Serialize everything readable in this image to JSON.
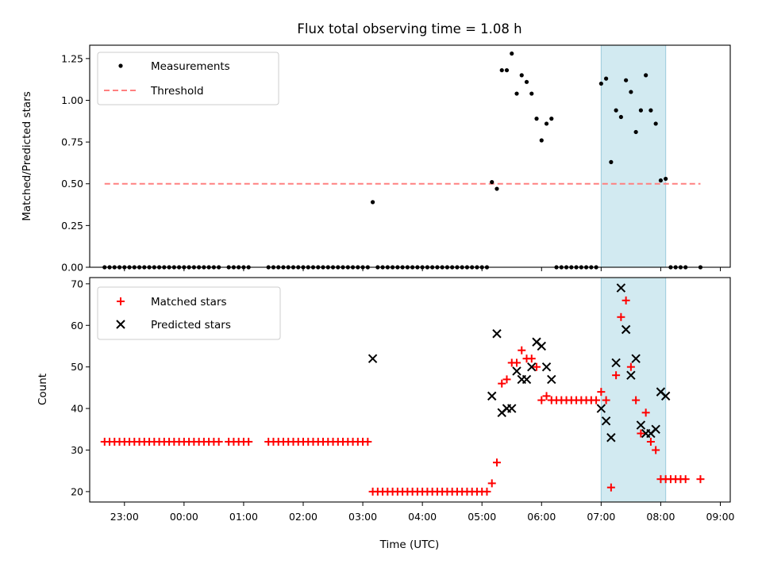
{
  "chart_data": [
    {
      "type": "scatter",
      "title": "Flux total observing time = 1.08 h",
      "xlabel": "",
      "ylabel": "Matched/Predicted stars",
      "ylim": [
        0,
        1.33
      ],
      "yticks": [
        "0.00",
        "0.25",
        "0.50",
        "0.75",
        "1.00",
        "1.25"
      ],
      "xlim": [
        "22:25",
        "09:10"
      ],
      "x_tick_labels_shown": false,
      "legend_position": "upper left",
      "legend": [
        "Measurements",
        "Threshold"
      ],
      "threshold": {
        "value": 0.5,
        "x_range": [
          "22:40",
          "08:40"
        ],
        "color": "#ff8080"
      },
      "shaded_interval": {
        "x_range": [
          "07:00",
          "08:05"
        ],
        "color": "#add8e6"
      },
      "series": [
        {
          "name": "Measurements",
          "color": "#000000",
          "points": [
            [
              "22:40",
              0
            ],
            [
              "22:45",
              0
            ],
            [
              "22:50",
              0
            ],
            [
              "22:55",
              0
            ],
            [
              "23:00",
              0
            ],
            [
              "23:05",
              0
            ],
            [
              "23:10",
              0
            ],
            [
              "23:15",
              0
            ],
            [
              "23:20",
              0
            ],
            [
              "23:25",
              0
            ],
            [
              "23:30",
              0
            ],
            [
              "23:35",
              0
            ],
            [
              "23:40",
              0
            ],
            [
              "23:45",
              0
            ],
            [
              "23:50",
              0
            ],
            [
              "23:55",
              0
            ],
            [
              "00:00",
              0
            ],
            [
              "00:05",
              0
            ],
            [
              "00:10",
              0
            ],
            [
              "00:15",
              0
            ],
            [
              "00:20",
              0
            ],
            [
              "00:25",
              0
            ],
            [
              "00:30",
              0
            ],
            [
              "00:35",
              0
            ],
            [
              "00:45",
              0
            ],
            [
              "00:50",
              0
            ],
            [
              "00:55",
              0
            ],
            [
              "01:00",
              0
            ],
            [
              "01:05",
              0
            ],
            [
              "01:25",
              0
            ],
            [
              "01:30",
              0
            ],
            [
              "01:35",
              0
            ],
            [
              "01:40",
              0
            ],
            [
              "01:45",
              0
            ],
            [
              "01:50",
              0
            ],
            [
              "01:55",
              0
            ],
            [
              "02:00",
              0
            ],
            [
              "02:05",
              0
            ],
            [
              "02:10",
              0
            ],
            [
              "02:15",
              0
            ],
            [
              "02:20",
              0
            ],
            [
              "02:25",
              0
            ],
            [
              "02:30",
              0
            ],
            [
              "02:35",
              0
            ],
            [
              "02:40",
              0
            ],
            [
              "02:45",
              0
            ],
            [
              "02:50",
              0
            ],
            [
              "02:55",
              0
            ],
            [
              "03:00",
              0
            ],
            [
              "03:05",
              0
            ],
            [
              "03:10",
              0.39
            ],
            [
              "03:15",
              0
            ],
            [
              "03:20",
              0
            ],
            [
              "03:25",
              0
            ],
            [
              "03:30",
              0
            ],
            [
              "03:35",
              0
            ],
            [
              "03:40",
              0
            ],
            [
              "03:45",
              0
            ],
            [
              "03:50",
              0
            ],
            [
              "03:55",
              0
            ],
            [
              "04:00",
              0
            ],
            [
              "04:05",
              0
            ],
            [
              "04:10",
              0
            ],
            [
              "04:15",
              0
            ],
            [
              "04:20",
              0
            ],
            [
              "04:25",
              0
            ],
            [
              "04:30",
              0
            ],
            [
              "04:35",
              0
            ],
            [
              "04:40",
              0
            ],
            [
              "04:45",
              0
            ],
            [
              "04:50",
              0
            ],
            [
              "04:55",
              0
            ],
            [
              "05:00",
              0
            ],
            [
              "05:05",
              0
            ],
            [
              "05:10",
              0.51
            ],
            [
              "05:15",
              0.47
            ],
            [
              "05:20",
              1.18
            ],
            [
              "05:25",
              1.18
            ],
            [
              "05:30",
              1.28
            ],
            [
              "05:35",
              1.04
            ],
            [
              "05:40",
              1.15
            ],
            [
              "05:45",
              1.11
            ],
            [
              "05:50",
              1.04
            ],
            [
              "05:55",
              0.89
            ],
            [
              "06:00",
              0.76
            ],
            [
              "06:05",
              0.86
            ],
            [
              "06:10",
              0.89
            ],
            [
              "06:15",
              0
            ],
            [
              "06:20",
              0
            ],
            [
              "06:25",
              0
            ],
            [
              "06:30",
              0
            ],
            [
              "06:35",
              0
            ],
            [
              "06:40",
              0
            ],
            [
              "06:45",
              0
            ],
            [
              "06:50",
              0
            ],
            [
              "06:55",
              0
            ],
            [
              "07:00",
              1.1
            ],
            [
              "07:05",
              1.13
            ],
            [
              "07:10",
              0.63
            ],
            [
              "07:15",
              0.94
            ],
            [
              "07:20",
              0.9
            ],
            [
              "07:25",
              1.12
            ],
            [
              "07:30",
              1.05
            ],
            [
              "07:35",
              0.81
            ],
            [
              "07:40",
              0.94
            ],
            [
              "07:45",
              1.15
            ],
            [
              "07:50",
              0.94
            ],
            [
              "07:55",
              0.86
            ],
            [
              "08:00",
              0.52
            ],
            [
              "08:05",
              0.53
            ],
            [
              "08:10",
              0
            ],
            [
              "08:15",
              0
            ],
            [
              "08:20",
              0
            ],
            [
              "08:25",
              0
            ],
            [
              "08:40",
              0
            ]
          ]
        }
      ]
    },
    {
      "type": "scatter",
      "title": "",
      "xlabel": "Time (UTC)",
      "ylabel": "Count",
      "ylim": [
        17.5,
        71.5
      ],
      "yticks": [
        "20",
        "30",
        "40",
        "50",
        "60",
        "70"
      ],
      "xlim": [
        "22:25",
        "09:10"
      ],
      "x_tick_labels": [
        "23:00",
        "00:00",
        "01:00",
        "02:00",
        "03:00",
        "04:00",
        "05:00",
        "06:00",
        "07:00",
        "08:00",
        "09:00"
      ],
      "legend_position": "upper left",
      "legend": [
        "Matched stars",
        "Predicted stars"
      ],
      "shaded_interval": {
        "x_range": [
          "07:00",
          "08:05"
        ],
        "color": "#add8e6"
      },
      "series": [
        {
          "name": "Matched stars",
          "marker": "+",
          "color": "#ff0000",
          "points": [
            [
              "22:40",
              32
            ],
            [
              "22:45",
              32
            ],
            [
              "22:50",
              32
            ],
            [
              "22:55",
              32
            ],
            [
              "23:00",
              32
            ],
            [
              "23:05",
              32
            ],
            [
              "23:10",
              32
            ],
            [
              "23:15",
              32
            ],
            [
              "23:20",
              32
            ],
            [
              "23:25",
              32
            ],
            [
              "23:30",
              32
            ],
            [
              "23:35",
              32
            ],
            [
              "23:40",
              32
            ],
            [
              "23:45",
              32
            ],
            [
              "23:50",
              32
            ],
            [
              "23:55",
              32
            ],
            [
              "00:00",
              32
            ],
            [
              "00:05",
              32
            ],
            [
              "00:10",
              32
            ],
            [
              "00:15",
              32
            ],
            [
              "00:20",
              32
            ],
            [
              "00:25",
              32
            ],
            [
              "00:30",
              32
            ],
            [
              "00:35",
              32
            ],
            [
              "00:45",
              32
            ],
            [
              "00:50",
              32
            ],
            [
              "00:55",
              32
            ],
            [
              "01:00",
              32
            ],
            [
              "01:05",
              32
            ],
            [
              "01:25",
              32
            ],
            [
              "01:30",
              32
            ],
            [
              "01:35",
              32
            ],
            [
              "01:40",
              32
            ],
            [
              "01:45",
              32
            ],
            [
              "01:50",
              32
            ],
            [
              "01:55",
              32
            ],
            [
              "02:00",
              32
            ],
            [
              "02:05",
              32
            ],
            [
              "02:10",
              32
            ],
            [
              "02:15",
              32
            ],
            [
              "02:20",
              32
            ],
            [
              "02:25",
              32
            ],
            [
              "02:30",
              32
            ],
            [
              "02:35",
              32
            ],
            [
              "02:40",
              32
            ],
            [
              "02:45",
              32
            ],
            [
              "02:50",
              32
            ],
            [
              "02:55",
              32
            ],
            [
              "03:00",
              32
            ],
            [
              "03:05",
              32
            ],
            [
              "03:10",
              20
            ],
            [
              "03:15",
              20
            ],
            [
              "03:20",
              20
            ],
            [
              "03:25",
              20
            ],
            [
              "03:30",
              20
            ],
            [
              "03:35",
              20
            ],
            [
              "03:40",
              20
            ],
            [
              "03:45",
              20
            ],
            [
              "03:50",
              20
            ],
            [
              "03:55",
              20
            ],
            [
              "04:00",
              20
            ],
            [
              "04:05",
              20
            ],
            [
              "04:10",
              20
            ],
            [
              "04:15",
              20
            ],
            [
              "04:20",
              20
            ],
            [
              "04:25",
              20
            ],
            [
              "04:30",
              20
            ],
            [
              "04:35",
              20
            ],
            [
              "04:40",
              20
            ],
            [
              "04:45",
              20
            ],
            [
              "04:50",
              20
            ],
            [
              "04:55",
              20
            ],
            [
              "05:00",
              20
            ],
            [
              "05:05",
              20
            ],
            [
              "05:10",
              22
            ],
            [
              "05:15",
              27
            ],
            [
              "05:20",
              46
            ],
            [
              "05:25",
              47
            ],
            [
              "05:30",
              51
            ],
            [
              "05:35",
              51
            ],
            [
              "05:40",
              54
            ],
            [
              "05:45",
              52
            ],
            [
              "05:50",
              52
            ],
            [
              "05:55",
              50
            ],
            [
              "06:00",
              42
            ],
            [
              "06:05",
              43
            ],
            [
              "06:10",
              42
            ],
            [
              "06:15",
              42
            ],
            [
              "06:20",
              42
            ],
            [
              "06:25",
              42
            ],
            [
              "06:30",
              42
            ],
            [
              "06:35",
              42
            ],
            [
              "06:40",
              42
            ],
            [
              "06:45",
              42
            ],
            [
              "06:50",
              42
            ],
            [
              "06:55",
              42
            ],
            [
              "07:00",
              44
            ],
            [
              "07:05",
              42
            ],
            [
              "07:10",
              21
            ],
            [
              "07:15",
              48
            ],
            [
              "07:20",
              62
            ],
            [
              "07:25",
              66
            ],
            [
              "07:30",
              50
            ],
            [
              "07:35",
              42
            ],
            [
              "07:40",
              34
            ],
            [
              "07:45",
              39
            ],
            [
              "07:50",
              32
            ],
            [
              "07:55",
              30
            ],
            [
              "08:00",
              23
            ],
            [
              "08:05",
              23
            ],
            [
              "08:10",
              23
            ],
            [
              "08:15",
              23
            ],
            [
              "08:20",
              23
            ],
            [
              "08:25",
              23
            ],
            [
              "08:40",
              23
            ]
          ]
        },
        {
          "name": "Predicted stars",
          "marker": "x",
          "color": "#000000",
          "points": [
            [
              "03:10",
              52
            ],
            [
              "05:10",
              43
            ],
            [
              "05:15",
              58
            ],
            [
              "05:20",
              39
            ],
            [
              "05:25",
              40
            ],
            [
              "05:30",
              40
            ],
            [
              "05:35",
              49
            ],
            [
              "05:40",
              47
            ],
            [
              "05:45",
              47
            ],
            [
              "05:50",
              50
            ],
            [
              "05:55",
              56
            ],
            [
              "06:00",
              55
            ],
            [
              "06:05",
              50
            ],
            [
              "06:10",
              47
            ],
            [
              "07:00",
              40
            ],
            [
              "07:05",
              37
            ],
            [
              "07:10",
              33
            ],
            [
              "07:15",
              51
            ],
            [
              "07:20",
              69
            ],
            [
              "07:25",
              59
            ],
            [
              "07:30",
              48
            ],
            [
              "07:35",
              52
            ],
            [
              "07:40",
              36
            ],
            [
              "07:45",
              34
            ],
            [
              "07:50",
              34
            ],
            [
              "07:55",
              35
            ],
            [
              "08:00",
              44
            ],
            [
              "08:05",
              43
            ]
          ]
        }
      ]
    }
  ]
}
